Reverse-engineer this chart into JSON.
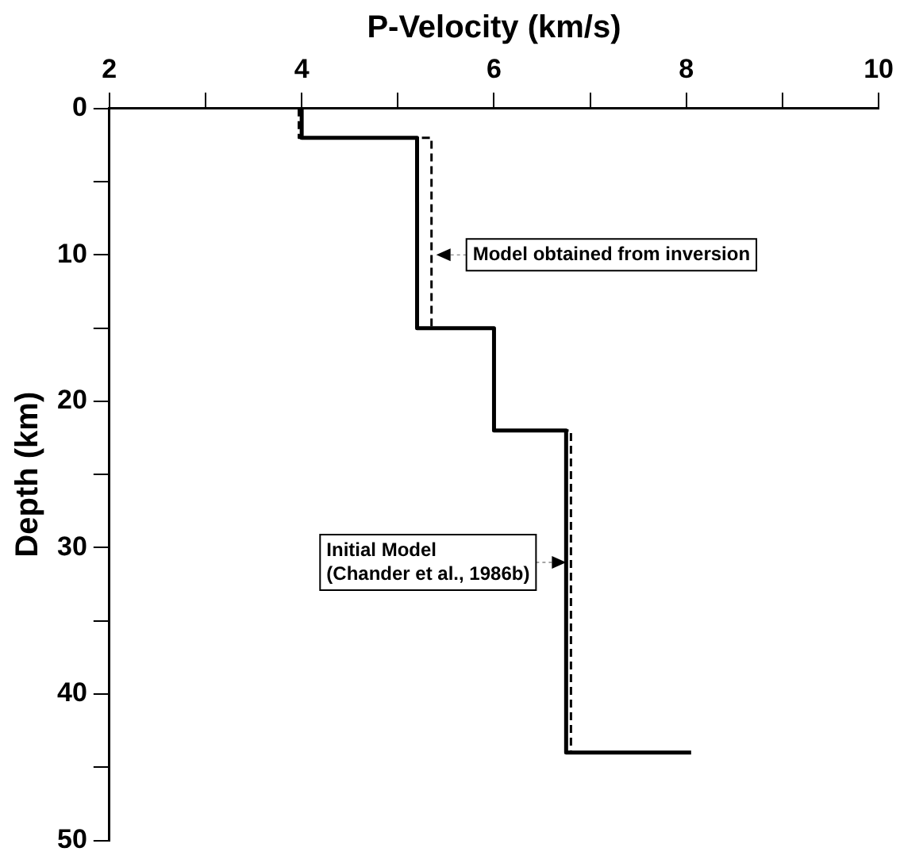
{
  "chart_data": {
    "type": "line",
    "xlabel": "P-Velocity (km/s)",
    "ylabel": "Depth (km)",
    "xlim": [
      2,
      10
    ],
    "xticks": [
      2,
      {
        "value": 3,
        "label": null
      },
      4,
      {
        "value": 5,
        "label": null
      },
      6,
      {
        "value": 7,
        "label": null
      },
      8,
      {
        "value": 9,
        "label": null
      },
      10
    ],
    "ylim": [
      50,
      0
    ],
    "yticks": [
      0,
      {
        "value": 5,
        "label": null
      },
      10,
      {
        "value": 15,
        "label": null
      },
      20,
      {
        "value": 25,
        "label": null
      },
      30,
      {
        "value": 35,
        "label": null
      },
      40,
      {
        "value": 45,
        "label": null
      },
      50
    ],
    "series": [
      {
        "color": "#000000",
        "line_style": "solid",
        "x": [
          4,
          4,
          5.2,
          5.2,
          6,
          6,
          6.75,
          6.75,
          8.05
        ],
        "values": [
          0,
          2,
          2,
          15,
          15,
          22,
          22,
          44,
          44
        ]
      },
      {
        "color": "#000000",
        "line_style": "dashed",
        "x": [
          3.97,
          3.97,
          5.35,
          5.35,
          6,
          6,
          6.8,
          6.8
        ],
        "values": [
          0,
          2,
          2,
          15,
          15,
          22,
          22,
          44
        ]
      }
    ],
    "annotations": [
      {
        "text": "Model obtained from inversion",
        "x": 5.35,
        "y": 10
      },
      {
        "text": "Initial Model\n(Chander et al., 1986b)",
        "x": 6.8,
        "y": 31
      }
    ],
    "grid": false,
    "legend": false,
    "marker": "none"
  }
}
